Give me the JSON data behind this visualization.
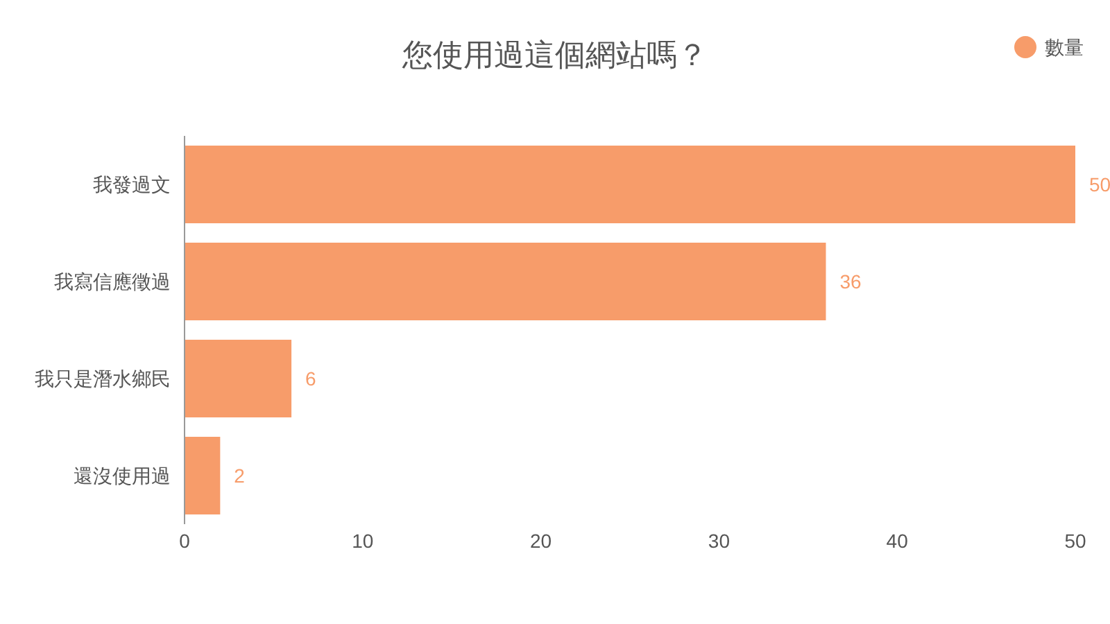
{
  "chart_data": {
    "type": "bar",
    "orientation": "horizontal",
    "title": "您使用過這個網站嗎？",
    "categories": [
      "我發過文",
      "我寫信應徵過",
      "我只是潛水鄉民",
      "還沒使用過"
    ],
    "series": [
      {
        "name": "數量",
        "color": "#f79c6a",
        "values": [
          50,
          36,
          6,
          2
        ]
      }
    ],
    "xlim": [
      0,
      50
    ],
    "xticks": [
      0,
      10,
      20,
      30,
      40,
      50
    ],
    "data_labels": true,
    "legend": "top right",
    "grid": false
  }
}
